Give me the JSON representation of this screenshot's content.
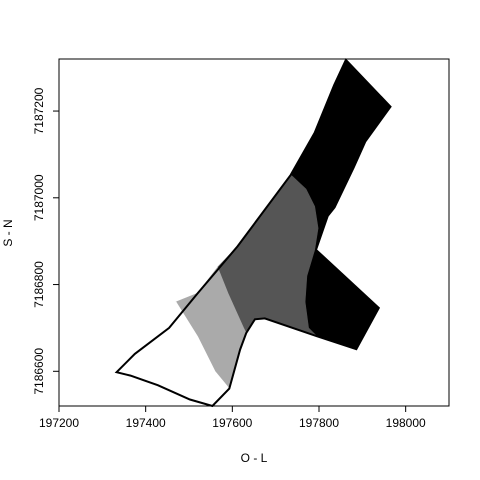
{
  "chart_data": {
    "type": "map",
    "title": "",
    "xlabel": "O - L",
    "ylabel": "S - N",
    "xlim": [
      197200,
      198100
    ],
    "ylim": [
      7186520,
      7187320
    ],
    "x_ticks": [
      197200,
      197400,
      197600,
      197800,
      198000
    ],
    "y_ticks": [
      7186600,
      7186800,
      7187000,
      7187200
    ],
    "grid": false,
    "legend": "none",
    "colors": {
      "zone_1": "#ffffff",
      "zone_2": "#aaaaaa",
      "zone_3": "#555555",
      "zone_4": "#000000",
      "outline": "#000000"
    },
    "outline": [
      [
        197862,
        7187318
      ],
      [
        197965,
        7187210
      ],
      [
        197907,
        7187130
      ],
      [
        197880,
        7187070
      ],
      [
        197836,
        7186978
      ],
      [
        197820,
        7186958
      ],
      [
        197793,
        7186880
      ],
      [
        197938,
        7186746
      ],
      [
        197886,
        7186651
      ],
      [
        197795,
        7186681
      ],
      [
        197675,
        7186722
      ],
      [
        197652,
        7186720
      ],
      [
        197632,
        7186688
      ],
      [
        197618,
        7186650
      ],
      [
        197593,
        7186560
      ],
      [
        197554,
        7186520
      ],
      [
        197502,
        7186535
      ],
      [
        197428,
        7186568
      ],
      [
        197365,
        7186590
      ],
      [
        197333,
        7186598
      ],
      [
        197375,
        7186640
      ],
      [
        197454,
        7186700
      ],
      [
        197520,
        7186780
      ],
      [
        197612,
        7186888
      ],
      [
        197735,
        7187053
      ],
      [
        197790,
        7187150
      ],
      [
        197835,
        7187260
      ]
    ],
    "zones": [
      {
        "id": "zone_4",
        "polygon": [
          [
            197862,
            7187318
          ],
          [
            197965,
            7187210
          ],
          [
            197907,
            7187130
          ],
          [
            197880,
            7187070
          ],
          [
            197836,
            7186978
          ],
          [
            197820,
            7186958
          ],
          [
            197793,
            7186880
          ],
          [
            197938,
            7186746
          ],
          [
            197886,
            7186651
          ],
          [
            197795,
            7186681
          ],
          [
            197776,
            7186700
          ],
          [
            197768,
            7186760
          ],
          [
            197772,
            7186820
          ],
          [
            197790,
            7186880
          ],
          [
            197798,
            7186930
          ],
          [
            197790,
            7186980
          ],
          [
            197770,
            7187020
          ],
          [
            197735,
            7187053
          ],
          [
            197790,
            7187150
          ],
          [
            197835,
            7187260
          ]
        ]
      },
      {
        "id": "zone_3",
        "polygon": [
          [
            197735,
            7187053
          ],
          [
            197770,
            7187020
          ],
          [
            197790,
            7186980
          ],
          [
            197798,
            7186930
          ],
          [
            197790,
            7186880
          ],
          [
            197772,
            7186820
          ],
          [
            197768,
            7186760
          ],
          [
            197776,
            7186700
          ],
          [
            197795,
            7186681
          ],
          [
            197675,
            7186722
          ],
          [
            197652,
            7186720
          ],
          [
            197632,
            7186688
          ],
          [
            197626,
            7186700
          ],
          [
            197590,
            7186780
          ],
          [
            197566,
            7186840
          ],
          [
            197612,
            7186888
          ]
        ]
      },
      {
        "id": "zone_2",
        "polygon": [
          [
            197566,
            7186840
          ],
          [
            197590,
            7186780
          ],
          [
            197626,
            7186700
          ],
          [
            197632,
            7186688
          ],
          [
            197618,
            7186650
          ],
          [
            197593,
            7186560
          ],
          [
            197560,
            7186600
          ],
          [
            197520,
            7186680
          ],
          [
            197470,
            7186760
          ],
          [
            197520,
            7186780
          ]
        ]
      },
      {
        "id": "zone_1",
        "polygon": [
          [
            197470,
            7186760
          ],
          [
            197520,
            7186680
          ],
          [
            197560,
            7186600
          ],
          [
            197593,
            7186560
          ],
          [
            197554,
            7186520
          ],
          [
            197502,
            7186535
          ],
          [
            197428,
            7186568
          ],
          [
            197365,
            7186590
          ],
          [
            197333,
            7186598
          ],
          [
            197375,
            7186640
          ],
          [
            197454,
            7186700
          ]
        ]
      }
    ]
  }
}
